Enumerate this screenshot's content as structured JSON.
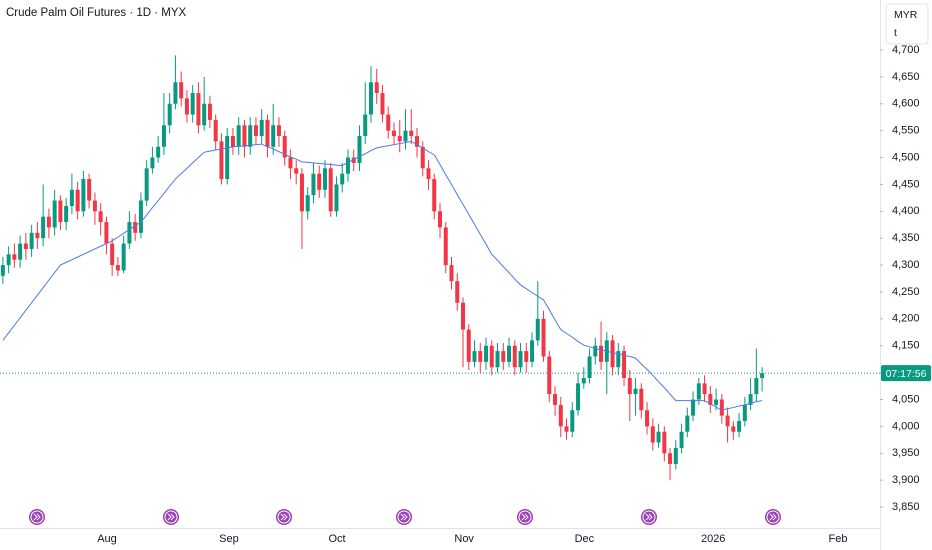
{
  "chart_data": {
    "type": "candlestick",
    "title": "Crude Palm Oil Futures · 1D · MYX",
    "currency": "MYR",
    "unit_label": "t",
    "countdown": "07:17:56",
    "up_color": "#089981",
    "down_color": "#f23645",
    "grid": false,
    "xlim": [
      -0.5,
      152.5
    ],
    "xticks": [
      {
        "value": 18.1,
        "label": "Aug"
      },
      {
        "value": 39.3,
        "label": "Sep"
      },
      {
        "value": 58.1,
        "label": "Oct"
      },
      {
        "value": 80.2,
        "label": "Nov"
      },
      {
        "value": 101.1,
        "label": "Dec"
      },
      {
        "value": 123.5,
        "label": "2026"
      },
      {
        "value": 145.2,
        "label": "Feb"
      }
    ],
    "ylim": [
      3811,
      4793
    ],
    "yticks": [
      {
        "value": 3850,
        "label": "3,850"
      },
      {
        "value": 3900,
        "label": "3,900"
      },
      {
        "value": 3950,
        "label": "3,950"
      },
      {
        "value": 4000,
        "label": "4,000"
      },
      {
        "value": 4050,
        "label": "4,050"
      },
      {
        "value": 4100,
        "label": "4,100"
      },
      {
        "value": 4150,
        "label": "4,150"
      },
      {
        "value": 4200,
        "label": "4,200"
      },
      {
        "value": 4250,
        "label": "4,250"
      },
      {
        "value": 4300,
        "label": "4,300"
      },
      {
        "value": 4350,
        "label": "4,350"
      },
      {
        "value": 4400,
        "label": "4,400"
      },
      {
        "value": 4450,
        "label": "4,450"
      },
      {
        "value": 4500,
        "label": "4,500"
      },
      {
        "value": 4550,
        "label": "4,550"
      },
      {
        "value": 4600,
        "label": "4,600"
      },
      {
        "value": 4650,
        "label": "4,650"
      },
      {
        "value": 4700,
        "label": "4,700"
      }
    ],
    "candles": {
      "open": [
        4280,
        4300,
        4320,
        4310,
        4340,
        4330,
        4360,
        4350,
        4390,
        4370,
        4420,
        4380,
        4410,
        4440,
        4400,
        4460,
        4420,
        4400,
        4380,
        4340,
        4300,
        4290,
        4340,
        4380,
        4360,
        4420,
        4480,
        4500,
        4520,
        4560,
        4600,
        4640,
        4610,
        4580,
        4620,
        4560,
        4600,
        4570,
        4530,
        4460,
        4540,
        4520,
        4560,
        4520,
        4560,
        4540,
        4570,
        4520,
        4560,
        4540,
        4500,
        4480,
        4470,
        4400,
        4430,
        4470,
        4440,
        4480,
        4400,
        4450,
        4470,
        4500,
        4490,
        4540,
        4580,
        4640,
        4620,
        4580,
        4550,
        4540,
        4530,
        4550,
        4540,
        4520,
        4480,
        4460,
        4400,
        4370,
        4300,
        4270,
        4230,
        4180,
        4120,
        4140,
        4120,
        4150,
        4110,
        4140,
        4120,
        4150,
        4110,
        4140,
        4120,
        4160,
        4200,
        4130,
        4060,
        4040,
        4000,
        3990,
        4030,
        4080,
        4090,
        4130,
        4150,
        4120,
        4160,
        4110,
        4140,
        4090,
        4060,
        4070,
        4030,
        4000,
        3970,
        3990,
        3950,
        3930,
        3960,
        3990,
        4020,
        4050,
        4080,
        4060,
        4040,
        4050,
        4020,
        4000,
        3990,
        4010,
        4040,
        4060,
        4090
      ],
      "high": [
        4315,
        4335,
        4340,
        4355,
        4360,
        4375,
        4380,
        4450,
        4405,
        4440,
        4430,
        4425,
        4470,
        4455,
        4475,
        4470,
        4435,
        4415,
        4390,
        4350,
        4315,
        4355,
        4400,
        4395,
        4435,
        4495,
        4520,
        4540,
        4620,
        4620,
        4690,
        4660,
        4625,
        4635,
        4640,
        4650,
        4615,
        4580,
        4545,
        4555,
        4555,
        4575,
        4570,
        4575,
        4575,
        4590,
        4580,
        4600,
        4575,
        4550,
        4515,
        4495,
        4480,
        4445,
        4490,
        4485,
        4495,
        4490,
        4465,
        4490,
        4515,
        4515,
        4560,
        4640,
        4670,
        4665,
        4635,
        4595,
        4565,
        4570,
        4590,
        4590,
        4555,
        4530,
        4495,
        4470,
        4415,
        4380,
        4315,
        4285,
        4240,
        4190,
        4160,
        4155,
        4165,
        4160,
        4155,
        4155,
        4165,
        4160,
        4155,
        4155,
        4175,
        4270,
        4215,
        4140,
        4075,
        4055,
        4015,
        4045,
        4100,
        4110,
        4145,
        4165,
        4195,
        4175,
        4170,
        4155,
        4150,
        4105,
        4090,
        4080,
        4045,
        4015,
        4005,
        4000,
        3960,
        3975,
        4005,
        4035,
        4065,
        4090,
        4095,
        4075,
        4070,
        4060,
        4035,
        4010,
        4025,
        4055,
        4090,
        4145,
        4110
      ],
      "low": [
        4265,
        4285,
        4295,
        4295,
        4310,
        4315,
        4330,
        4335,
        4350,
        4355,
        4365,
        4365,
        4395,
        4385,
        4390,
        4405,
        4375,
        4355,
        4320,
        4280,
        4280,
        4285,
        4330,
        4345,
        4350,
        4410,
        4470,
        4490,
        4505,
        4545,
        4590,
        4595,
        4565,
        4565,
        4545,
        4550,
        4555,
        4515,
        4450,
        4450,
        4505,
        4505,
        4500,
        4505,
        4525,
        4525,
        4500,
        4505,
        4520,
        4485,
        4460,
        4450,
        4330,
        4385,
        4415,
        4425,
        4425,
        4390,
        4390,
        4435,
        4455,
        4475,
        4475,
        4525,
        4565,
        4600,
        4565,
        4535,
        4525,
        4510,
        4515,
        4525,
        4500,
        4465,
        4440,
        4385,
        4350,
        4285,
        4255,
        4215,
        4110,
        4105,
        4110,
        4100,
        4105,
        4095,
        4100,
        4105,
        4110,
        4095,
        4100,
        4100,
        4110,
        4150,
        4120,
        4045,
        4020,
        3980,
        3975,
        3980,
        4020,
        4070,
        4080,
        4115,
        4105,
        4060,
        4095,
        4095,
        4075,
        4010,
        4020,
        4015,
        3985,
        3955,
        3960,
        3935,
        3900,
        3920,
        3950,
        3980,
        4010,
        4040,
        4045,
        4025,
        4030,
        4005,
        3970,
        3975,
        3980,
        4000,
        4030,
        4045,
        4065
      ],
      "close": [
        4300,
        4320,
        4310,
        4340,
        4330,
        4360,
        4350,
        4390,
        4370,
        4420,
        4380,
        4410,
        4440,
        4400,
        4460,
        4420,
        4400,
        4380,
        4340,
        4300,
        4290,
        4340,
        4380,
        4360,
        4420,
        4480,
        4500,
        4520,
        4560,
        4600,
        4640,
        4610,
        4580,
        4620,
        4560,
        4600,
        4570,
        4530,
        4460,
        4540,
        4520,
        4560,
        4520,
        4560,
        4540,
        4570,
        4520,
        4560,
        4540,
        4500,
        4480,
        4470,
        4400,
        4430,
        4470,
        4440,
        4480,
        4400,
        4450,
        4470,
        4500,
        4490,
        4540,
        4580,
        4640,
        4620,
        4580,
        4550,
        4540,
        4530,
        4550,
        4540,
        4520,
        4480,
        4460,
        4400,
        4370,
        4300,
        4270,
        4230,
        4180,
        4120,
        4140,
        4120,
        4150,
        4110,
        4140,
        4120,
        4150,
        4110,
        4140,
        4120,
        4160,
        4200,
        4130,
        4060,
        4040,
        4000,
        3990,
        4030,
        4080,
        4090,
        4130,
        4150,
        4120,
        4160,
        4110,
        4140,
        4090,
        4060,
        4070,
        4030,
        4000,
        3970,
        3990,
        3950,
        3930,
        3960,
        3990,
        4020,
        4050,
        4080,
        4060,
        4040,
        4050,
        4020,
        4000,
        3990,
        4010,
        4040,
        4060,
        4090,
        4099
      ]
    },
    "ma": {
      "color": "#4c7be3",
      "values": [
        4160,
        4174,
        4188,
        4202,
        4216,
        4230,
        4244,
        4258,
        4272,
        4286,
        4300,
        4305,
        4310,
        4315,
        4320,
        4325,
        4330,
        4335,
        4340,
        4345,
        4352,
        4359,
        4366,
        4373,
        4380,
        4393,
        4407,
        4420,
        4433,
        4447,
        4460,
        4470,
        4480,
        4490,
        4500,
        4510,
        4512,
        4514,
        4516,
        4518,
        4520,
        4521,
        4522,
        4523,
        4524,
        4525,
        4520,
        4516,
        4511,
        4506,
        4501,
        4497,
        4492,
        4491,
        4490,
        4489,
        4488,
        4487,
        4486,
        4485,
        4491,
        4496,
        4502,
        4507,
        4513,
        4518,
        4520,
        4522,
        4524,
        4526,
        4528,
        4530,
        4524,
        4518,
        4511,
        4505,
        4487,
        4468,
        4450,
        4431,
        4413,
        4394,
        4376,
        4357,
        4339,
        4320,
        4309,
        4297,
        4286,
        4274,
        4263,
        4256,
        4249,
        4242,
        4235,
        4217,
        4198,
        4180,
        4173,
        4166,
        4158,
        4151,
        4148,
        4145,
        4142,
        4140,
        4137,
        4135,
        4132,
        4130,
        4127,
        4116,
        4106,
        4095,
        4083,
        4072,
        4060,
        4048,
        4048,
        4048,
        4048,
        4048,
        4048,
        4042,
        4036,
        4030,
        4033,
        4035,
        4038,
        4040,
        4043,
        4046,
        4048
      ]
    }
  }
}
